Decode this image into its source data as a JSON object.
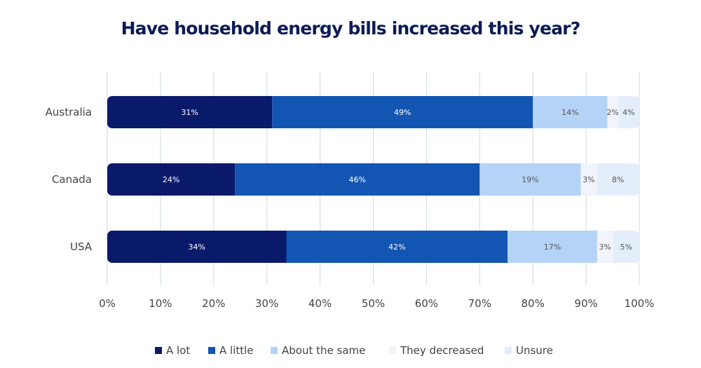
{
  "title": "Have household energy bills increased this year?",
  "chart_data": {
    "type": "bar",
    "orientation": "horizontal",
    "stacked": true,
    "title": "Have household energy bills increased this year?",
    "xlabel": "",
    "ylabel": "",
    "xlim": [
      0,
      100
    ],
    "x_ticks": [
      "0%",
      "10%",
      "20%",
      "30%",
      "40%",
      "50%",
      "60%",
      "70%",
      "80%",
      "90%",
      "100%"
    ],
    "grid": "vertical",
    "legend_position": "bottom",
    "categories": [
      "Australia",
      "Canada",
      "USA"
    ],
    "series": [
      {
        "name": "A lot",
        "color": "#0a1a6b",
        "values": [
          31,
          24,
          34
        ],
        "labels": [
          "31%",
          "24%",
          "34%"
        ],
        "label_color": "#ffffff"
      },
      {
        "name": "A little",
        "color": "#1255b3",
        "values": [
          49,
          46,
          42
        ],
        "labels": [
          "49%",
          "46%",
          "42%"
        ],
        "label_color": "#ffffff"
      },
      {
        "name": "About the same",
        "color": "#b4d3f7",
        "values": [
          14,
          19,
          17
        ],
        "labels": [
          "14%",
          "19%",
          "17%"
        ],
        "label_color": "#555555"
      },
      {
        "name": "They decreased",
        "color": "#f1f4fb",
        "values": [
          2,
          3,
          3
        ],
        "labels": [
          "2%",
          "3%",
          "3%"
        ],
        "label_color": "#555555"
      },
      {
        "name": "Unsure",
        "color": "#e4eefb",
        "values": [
          4,
          8,
          5
        ],
        "labels": [
          "4%",
          "8%",
          "5%"
        ],
        "label_color": "#555555"
      }
    ]
  }
}
